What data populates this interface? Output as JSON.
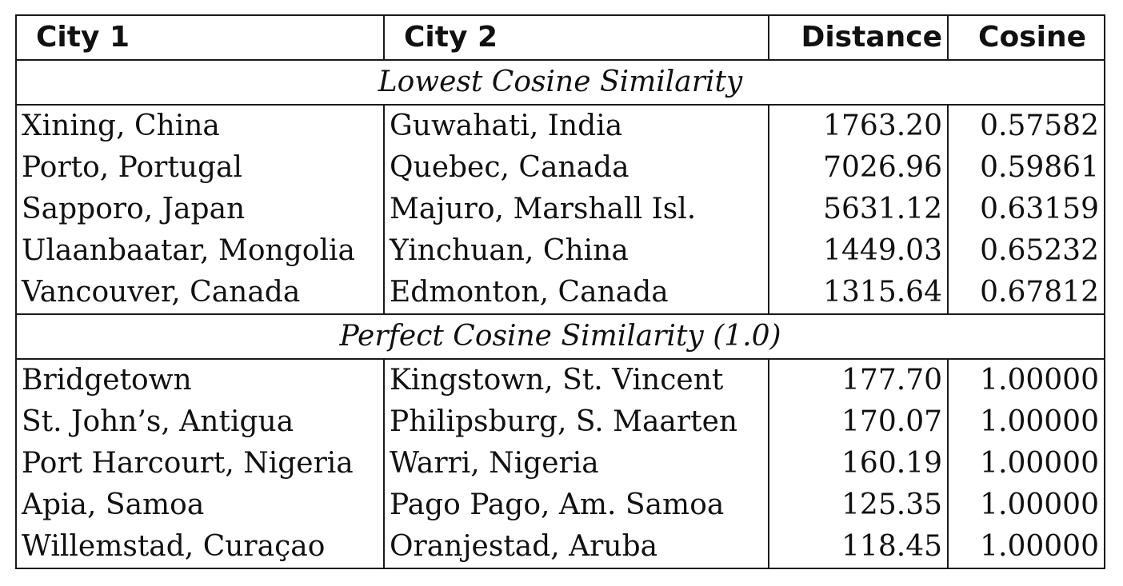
{
  "table": {
    "headers": [
      "City 1",
      "City 2",
      "Distance",
      "Cosine"
    ],
    "sections": [
      {
        "title": "Lowest Cosine Similarity",
        "rows": [
          [
            "Xining, China",
            "Guwahati, India",
            "1763.20",
            "0.57582"
          ],
          [
            "Porto, Portugal",
            "Quebec, Canada",
            "7026.96",
            "0.59861"
          ],
          [
            "Sapporo, Japan",
            "Majuro, Marshall Isl.",
            "5631.12",
            "0.63159"
          ],
          [
            "Ulaanbaatar, Mongolia",
            "Yinchuan, China",
            "1449.03",
            "0.65232"
          ],
          [
            "Vancouver, Canada",
            "Edmonton, Canada",
            "1315.64",
            "0.67812"
          ]
        ]
      },
      {
        "title": "Perfect Cosine Similarity (1.0)",
        "rows": [
          [
            "Bridgetown",
            "Kingstown, St. Vincent",
            "177.70",
            "1.00000"
          ],
          [
            "St. John’s, Antigua",
            "Philipsburg, S. Maarten",
            "170.07",
            "1.00000"
          ],
          [
            "Port Harcourt, Nigeria",
            "Warri, Nigeria",
            "160.19",
            "1.00000"
          ],
          [
            "Apia, Samoa",
            "Pago Pago, Am. Samoa",
            "125.35",
            "1.00000"
          ],
          [
            "Willemstad, Curaçao",
            "Oranjestad, Aruba",
            "118.45",
            "1.00000"
          ]
        ]
      }
    ]
  }
}
